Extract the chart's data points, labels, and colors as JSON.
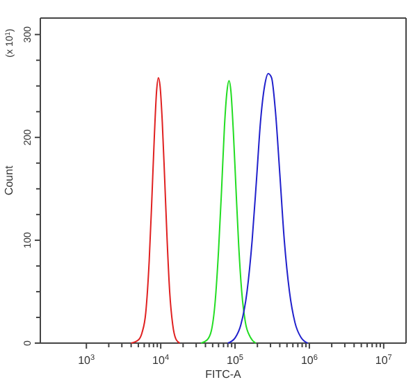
{
  "chart_data": {
    "type": "line",
    "xlabel": "FITC-A",
    "ylabel": "Count",
    "annotations": [
      "(x 10$^{1}$)"
    ],
    "log": "x",
    "grid": false,
    "marker": "none",
    "line_style": "solid",
    "xlim": [
      240,
      20000000
    ],
    "xticks": [
      {
        "value": 1000,
        "label": "10$^{3}$"
      },
      {
        "value": 2000,
        "label": null
      },
      {
        "value": 3000,
        "label": null
      },
      {
        "value": 4000,
        "label": null
      },
      {
        "value": 5000,
        "label": null
      },
      {
        "value": 6000,
        "label": null
      },
      {
        "value": 7000,
        "label": null
      },
      {
        "value": 8000,
        "label": null
      },
      {
        "value": 9000,
        "label": null
      },
      {
        "value": 10000,
        "label": "10$^{4}$"
      },
      {
        "value": 20000,
        "label": null
      },
      {
        "value": 30000,
        "label": null
      },
      {
        "value": 40000,
        "label": null
      },
      {
        "value": 50000,
        "label": null
      },
      {
        "value": 60000,
        "label": null
      },
      {
        "value": 70000,
        "label": null
      },
      {
        "value": 80000,
        "label": null
      },
      {
        "value": 90000,
        "label": null
      },
      {
        "value": 100000,
        "label": "10$^{5}$"
      },
      {
        "value": 200000,
        "label": null
      },
      {
        "value": 300000,
        "label": null
      },
      {
        "value": 400000,
        "label": null
      },
      {
        "value": 500000,
        "label": null
      },
      {
        "value": 600000,
        "label": null
      },
      {
        "value": 700000,
        "label": null
      },
      {
        "value": 800000,
        "label": null
      },
      {
        "value": 900000,
        "label": null
      },
      {
        "value": 1000000,
        "label": "10$^{6}$"
      },
      {
        "value": 2000000,
        "label": null
      },
      {
        "value": 3000000,
        "label": null
      },
      {
        "value": 4000000,
        "label": null
      },
      {
        "value": 5000000,
        "label": null
      },
      {
        "value": 6000000,
        "label": null
      },
      {
        "value": 7000000,
        "label": null
      },
      {
        "value": 8000000,
        "label": null
      },
      {
        "value": 9000000,
        "label": null
      },
      {
        "value": 10000000,
        "label": "10$^{7}$"
      }
    ],
    "ylim": [
      0,
      316
    ],
    "yticks": [
      0,
      {
        "value": 25,
        "label": null
      },
      {
        "value": 50,
        "label": null
      },
      {
        "value": 75,
        "label": null
      },
      100,
      {
        "value": 125,
        "label": null
      },
      {
        "value": 150,
        "label": null
      },
      {
        "value": 175,
        "label": null
      },
      200,
      {
        "value": 225,
        "label": null
      },
      {
        "value": 250,
        "label": null
      },
      {
        "value": 275,
        "label": null
      },
      300
    ],
    "series": [
      {
        "color": "#e02020",
        "x": [
          4000,
          5000,
          5600,
          6300,
          7000,
          7600,
          8200,
          8800,
          9300,
          9800,
          10500,
          11300,
          12200,
          13200,
          14500,
          16000,
          18000
        ],
        "values": [
          0,
          3,
          10,
          30,
          80,
          140,
          200,
          245,
          258,
          250,
          215,
          160,
          100,
          50,
          18,
          4,
          0
        ]
      },
      {
        "color": "#22dd22",
        "x": [
          35000,
          42000,
          48000,
          54000,
          60000,
          66000,
          72000,
          78000,
          83000,
          88000,
          95000,
          103000,
          112000,
          123000,
          138000,
          160000,
          190000
        ],
        "values": [
          0,
          3,
          12,
          40,
          90,
          150,
          210,
          245,
          255,
          245,
          205,
          150,
          95,
          50,
          20,
          6,
          0
        ]
      },
      {
        "color": "#2020cc",
        "x": [
          80000,
          100000,
          120000,
          145000,
          170000,
          195000,
          220000,
          250000,
          280000,
          310000,
          350000,
          400000,
          460000,
          540000,
          640000,
          780000,
          950000
        ],
        "values": [
          0,
          5,
          18,
          50,
          100,
          160,
          215,
          250,
          262,
          258,
          225,
          165,
          100,
          50,
          20,
          5,
          0
        ]
      }
    ]
  }
}
